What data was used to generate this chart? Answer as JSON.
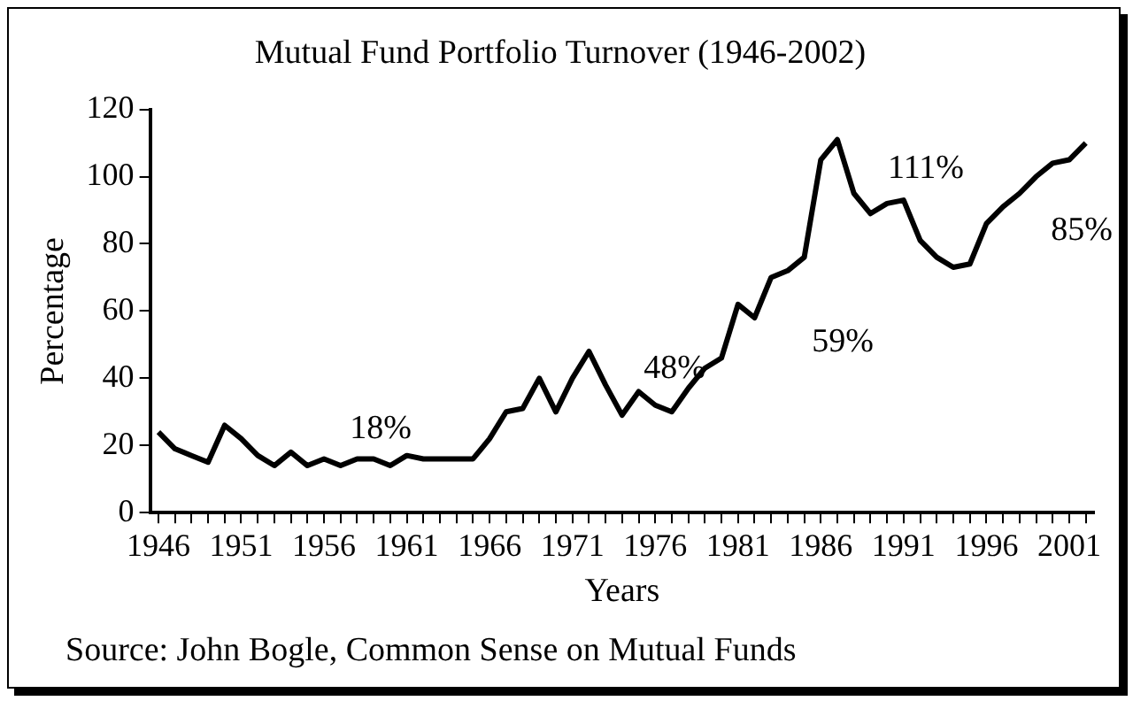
{
  "chart_data": {
    "type": "line",
    "title": "Mutual Fund Portfolio Turnover (1946-2002)",
    "xlabel": "Years",
    "ylabel": "Percentage",
    "categories": [
      "1946",
      null,
      null,
      null,
      null,
      "1951",
      null,
      null,
      null,
      null,
      "1956",
      null,
      null,
      null,
      null,
      "1961",
      null,
      null,
      null,
      null,
      "1966",
      null,
      null,
      null,
      null,
      "1971",
      null,
      null,
      null,
      null,
      "1976",
      null,
      null,
      null,
      null,
      "1981",
      null,
      null,
      null,
      null,
      "1986",
      null,
      null,
      null,
      null,
      "1991",
      null,
      null,
      null,
      null,
      "1996",
      null,
      null,
      null,
      null,
      "2001",
      null
    ],
    "series": [
      {
        "color": "#000000",
        "values": [
          24,
          19,
          17,
          15,
          26,
          22,
          17,
          14,
          18,
          14,
          16,
          14,
          16,
          16,
          14,
          17,
          16,
          16,
          16,
          16,
          22,
          30,
          31,
          40,
          30,
          40,
          48,
          38,
          29,
          36,
          32,
          30,
          37,
          43,
          46,
          62,
          58,
          70,
          72,
          76,
          105,
          111,
          95,
          89,
          92,
          93,
          81,
          76,
          73,
          74,
          86,
          91,
          95,
          100,
          104,
          105,
          110
        ]
      }
    ],
    "ylim": [
      0,
      120
    ],
    "yticks": [
      0,
      20,
      40,
      60,
      80,
      100,
      120
    ],
    "grid": false,
    "legend": false,
    "marker": "none",
    "line_style": "solid",
    "annotations": [
      "18%",
      "48%",
      "59%",
      "111%",
      "85%",
      "Source: John Bogle, Common Sense on Mutual Funds"
    ]
  }
}
